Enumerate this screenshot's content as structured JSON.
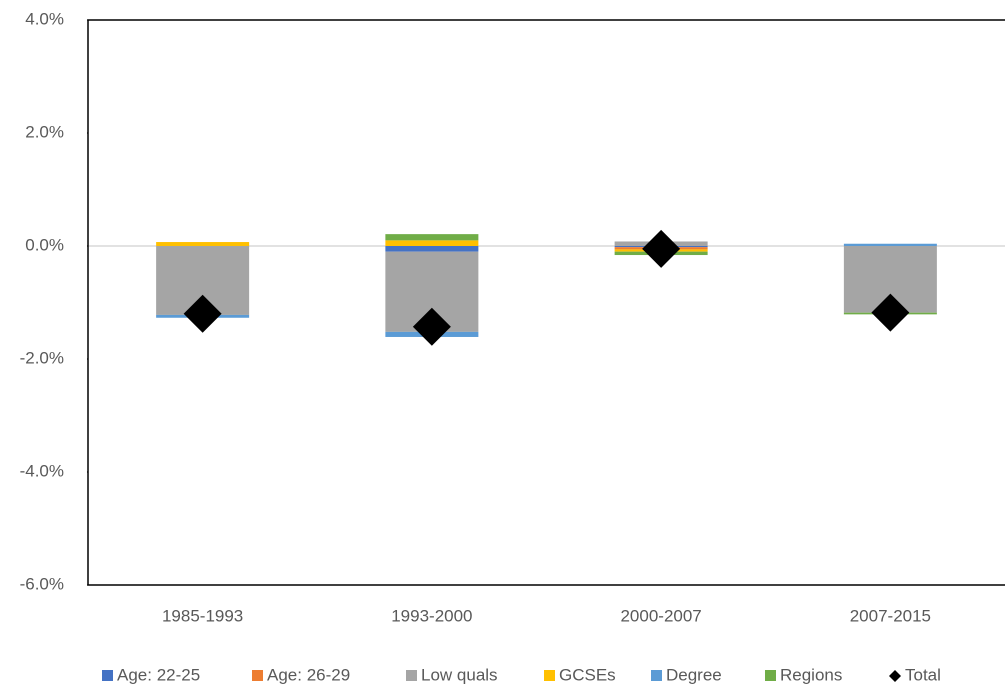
{
  "chart_data": {
    "type": "bar",
    "stacked": true,
    "legend": "bottom",
    "categories": [
      "1985-1993",
      "1993-2000",
      "2000-2007",
      "2007-2015"
    ],
    "series": [
      {
        "name": "Age: 22-25",
        "color": "#4472c4",
        "values": [
          0,
          -0.1,
          -0.02,
          0
        ]
      },
      {
        "name": "Age: 26-29",
        "color": "#ed7d31",
        "values": [
          0,
          0,
          -0.04,
          0
        ]
      },
      {
        "name": "Low quals",
        "color": "#a5a5a5",
        "values": [
          -1.22,
          -1.42,
          0.08,
          -1.18
        ]
      },
      {
        "name": "GCSEs",
        "color": "#ffc000",
        "values": [
          0.07,
          0.1,
          -0.04,
          0
        ]
      },
      {
        "name": "Degree",
        "color": "#5b9bd5",
        "values": [
          -0.05,
          -0.09,
          0,
          0.04
        ]
      },
      {
        "name": "Regions",
        "color": "#70ad47",
        "values": [
          0,
          0.11,
          -0.06,
          -0.03
        ]
      },
      {
        "name": "Total",
        "type": "scatter",
        "marker": "diamond",
        "color": "#000000",
        "values": [
          -1.2,
          -1.43,
          -0.05,
          -1.18
        ]
      }
    ],
    "ylim": [
      -6,
      4
    ],
    "yticks": [
      {
        "value": -6,
        "label": "-6.0%"
      },
      {
        "value": -4,
        "label": "-4.0%"
      },
      {
        "value": -2,
        "label": "-2.0%"
      },
      {
        "value": 0,
        "label": "0.0%"
      },
      {
        "value": 2,
        "label": "2.0%"
      },
      {
        "value": 4,
        "label": "4.0%"
      }
    ]
  }
}
